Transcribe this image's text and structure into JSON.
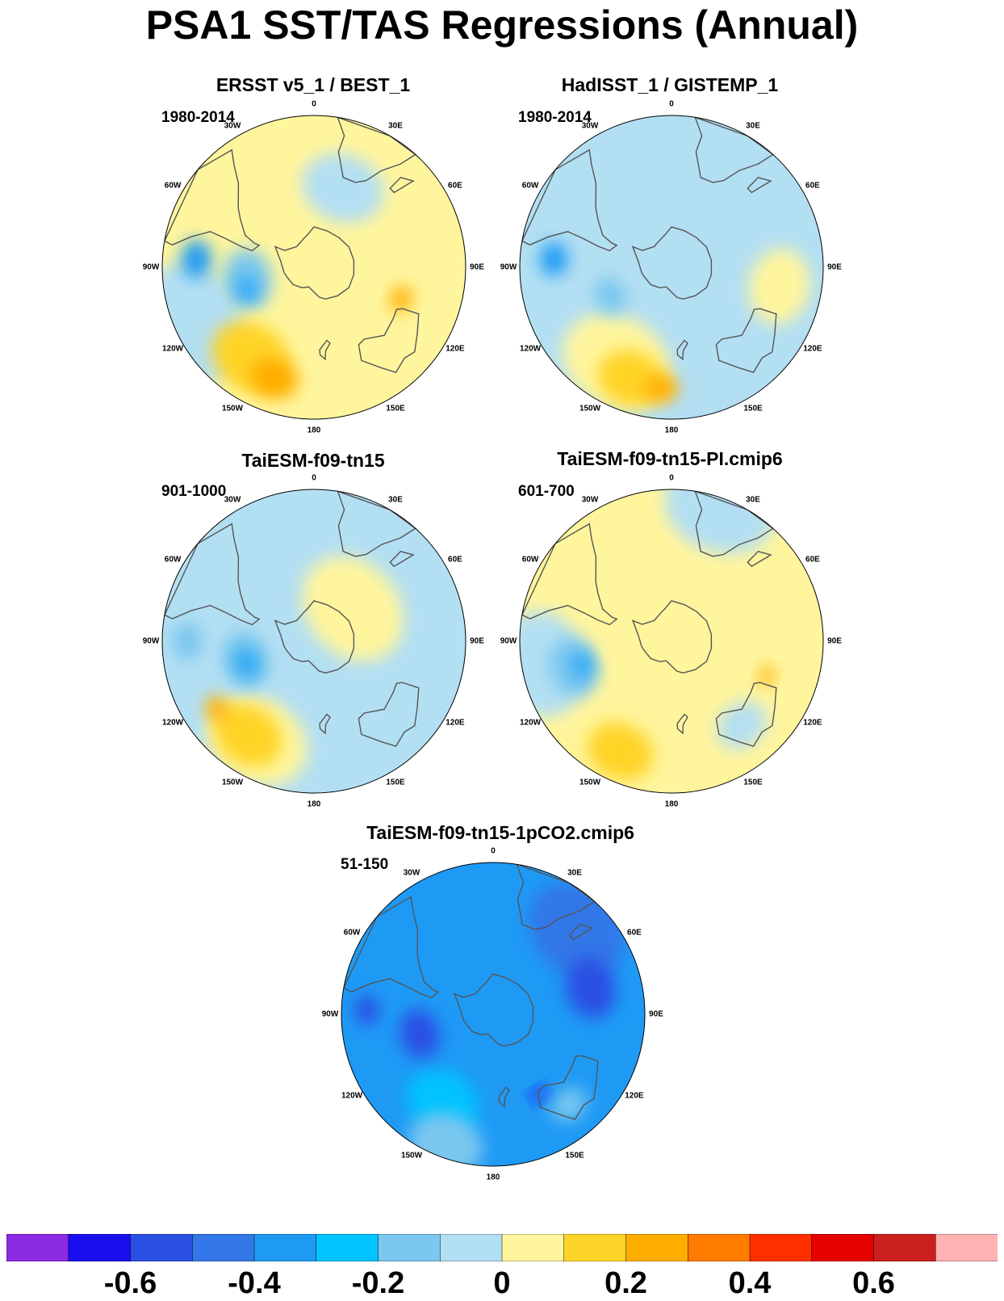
{
  "title": "PSA1 SST/TAS Regressions (Annual)",
  "longitude_labels": [
    "0",
    "30E",
    "60E",
    "90E",
    "120E",
    "150E",
    "180",
    "150W",
    "120W",
    "90W",
    "60W",
    "30W"
  ],
  "panels": [
    {
      "title": "ERSST v5_1 / BEST_1",
      "period": "1980-2014",
      "base_color": "#fff59d",
      "blobs": [
        {
          "c": "#b3dff3",
          "lat": -10,
          "lon": -115,
          "r": 0.33
        },
        {
          "c": "#b3dff3",
          "lat": -40,
          "lon": 20,
          "r": 0.22
        },
        {
          "c": "#7ac7ef",
          "lat": -50,
          "lon": -100,
          "r": 0.16
        },
        {
          "c": "#2da8f5",
          "lat": -48,
          "lon": -108,
          "r": 0.07
        },
        {
          "c": "#1e9af5",
          "lat": -20,
          "lon": -86,
          "r": 0.1
        },
        {
          "c": "#ffd428",
          "lat": -25,
          "lon": -145,
          "r": 0.22
        },
        {
          "c": "#ffae00",
          "lat": -20,
          "lon": -160,
          "r": 0.13
        },
        {
          "c": "#ffae00",
          "lat": -35,
          "lon": 110,
          "r": 0.07
        }
      ]
    },
    {
      "title": "HadISST_1 / GISTEMP_1",
      "period": "1980-2014",
      "base_color": "#b3dff3",
      "blobs": [
        {
          "c": "#fff59d",
          "lat": -25,
          "lon": -150,
          "r": 0.3
        },
        {
          "c": "#fff59d",
          "lat": -25,
          "lon": 100,
          "r": 0.2
        },
        {
          "c": "#ffd428",
          "lat": -20,
          "lon": -160,
          "r": 0.18
        },
        {
          "c": "#ffae00",
          "lat": -18,
          "lon": -175,
          "r": 0.09
        },
        {
          "c": "#7ac7ef",
          "lat": -50,
          "lon": -115,
          "r": 0.1
        },
        {
          "c": "#1e9af5",
          "lat": -20,
          "lon": -86,
          "r": 0.09
        }
      ]
    },
    {
      "title": "TaiESM-f09-tn15",
      "period": "901-1000",
      "base_color": "#b3dff3",
      "blobs": [
        {
          "c": "#fff59d",
          "lat": -60,
          "lon": 50,
          "r": 0.3
        },
        {
          "c": "#fff59d",
          "lat": -22,
          "lon": -150,
          "r": 0.28
        },
        {
          "c": "#ffd428",
          "lat": -22,
          "lon": -145,
          "r": 0.19
        },
        {
          "c": "#ffae00",
          "lat": -20,
          "lon": -125,
          "r": 0.07
        },
        {
          "c": "#7ac7ef",
          "lat": -48,
          "lon": -105,
          "r": 0.15
        },
        {
          "c": "#2da8f5",
          "lat": -48,
          "lon": -108,
          "r": 0.08
        },
        {
          "c": "#7ac7ef",
          "lat": -15,
          "lon": -90,
          "r": 0.1
        }
      ]
    },
    {
      "title": "TaiESM-f09-tn15-PI.cmip6",
      "period": "601-700",
      "base_color": "#fff59d",
      "blobs": [
        {
          "c": "#b3dff3",
          "lat": -5,
          "lon": 20,
          "r": 0.3
        },
        {
          "c": "#b3dff3",
          "lat": -12,
          "lon": -100,
          "r": 0.28
        },
        {
          "c": "#7ac7ef",
          "lat": -30,
          "lon": -105,
          "r": 0.16
        },
        {
          "c": "#2da8f5",
          "lat": -35,
          "lon": -105,
          "r": 0.07
        },
        {
          "c": "#ffd428",
          "lat": -18,
          "lon": -155,
          "r": 0.18
        },
        {
          "c": "#ffae00",
          "lat": -30,
          "lon": 110,
          "r": 0.05
        },
        {
          "c": "#b3dff3",
          "lat": -25,
          "lon": 140,
          "r": 0.14
        }
      ]
    },
    {
      "title": "TaiESM-f09-tn15-1pCO2.cmip6",
      "period": "51-150",
      "base_color": "#1e9af5",
      "blobs": [
        {
          "c": "#3377e8",
          "lat": -20,
          "lon": 45,
          "r": 0.28
        },
        {
          "c": "#2a4fe3",
          "lat": -30,
          "lon": 75,
          "r": 0.16
        },
        {
          "c": "#00c3ff",
          "lat": -30,
          "lon": -150,
          "r": 0.2
        },
        {
          "c": "#7ac7ef",
          "lat": -8,
          "lon": -160,
          "r": 0.2
        },
        {
          "c": "#2a4fe3",
          "lat": -45,
          "lon": -105,
          "r": 0.13
        },
        {
          "c": "#2a4fe3",
          "lat": -15,
          "lon": -88,
          "r": 0.08
        },
        {
          "c": "#1a14f5",
          "lat": -35,
          "lon": 150,
          "r": 0.04
        },
        {
          "c": "#7ac7ef",
          "lat": -20,
          "lon": 140,
          "r": 0.1
        }
      ]
    }
  ],
  "colorbar": {
    "colors": [
      "#8a2be2",
      "#1a0ef0",
      "#2a4fe3",
      "#3377e8",
      "#1e9af5",
      "#00c3ff",
      "#7ac7ef",
      "#b3dff3",
      "#fff59d",
      "#ffd428",
      "#ffae00",
      "#ff7c00",
      "#ff3000",
      "#e60000",
      "#cc1f1f",
      "#ffb3b3"
    ],
    "tick_labels": [
      "-0.6",
      "-0.4",
      "-0.2",
      "0",
      "0.2",
      "0.4",
      "0.6"
    ],
    "tick_values": [
      -0.6,
      -0.4,
      -0.2,
      0,
      0.2,
      0.4,
      0.6
    ],
    "min": -0.8,
    "max": 0.8
  }
}
